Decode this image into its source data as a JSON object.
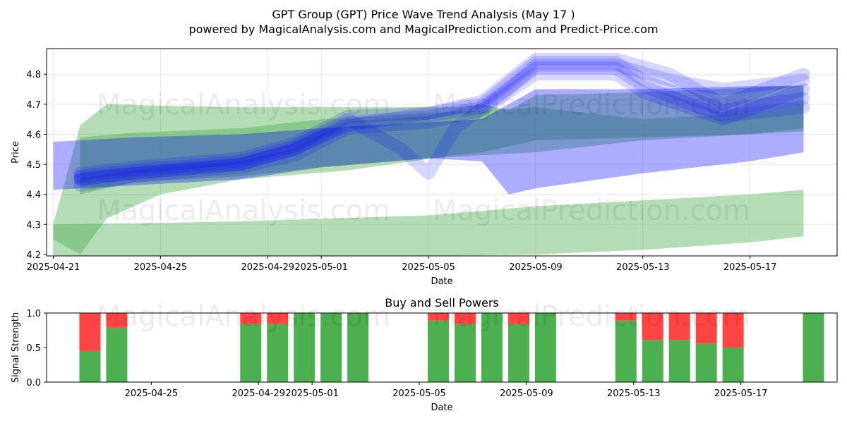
{
  "title_line1": "GPT Group (GPT) Price Wave Trend Analysis (May 17 )",
  "title_line2": "powered by MagicalAnalysis.com and MagicalPrediction.com and Predict-Price.com",
  "watermarks": [
    "MagicalAnalysis.com",
    "MagicalPrediction.com"
  ],
  "colors": {
    "bull_band": "#4caf50",
    "bear_band": "#0000ff",
    "buy": "#4caf50",
    "sell": "#ff4444"
  },
  "chart_data": [
    {
      "type": "area",
      "title": "",
      "xlabel": "Date",
      "ylabel": "Price",
      "xlim": [
        "2025-04-20T18:00",
        "2025-05-20T06:00"
      ],
      "ylim": [
        4.195,
        4.885
      ],
      "x_ticks": [
        "2025-04-21",
        "2025-04-25",
        "2025-04-29",
        "2025-05-01",
        "2025-05-05",
        "2025-05-09",
        "2025-05-13",
        "2025-05-17"
      ],
      "y_ticks": [
        4.2,
        4.3,
        4.4,
        4.5,
        4.6,
        4.7,
        4.8
      ],
      "grid": true,
      "series": [
        {
          "kind": "green-band-upper",
          "x": [
            "2025-04-21",
            "2025-04-22",
            "2025-04-23",
            "2025-04-25",
            "2025-04-28",
            "2025-05-02",
            "2025-05-06",
            "2025-05-07",
            "2025-05-08",
            "2025-05-09",
            "2025-05-13",
            "2025-05-17",
            "2025-05-19"
          ],
          "top": [
            4.3,
            4.63,
            4.7,
            4.695,
            4.69,
            4.69,
            4.69,
            4.7,
            4.68,
            4.73,
            4.74,
            4.755,
            4.765
          ],
          "bottom": [
            4.25,
            4.2,
            4.32,
            4.4,
            4.45,
            4.48,
            4.53,
            4.54,
            4.56,
            4.58,
            4.59,
            4.6,
            4.61
          ]
        },
        {
          "kind": "green-band-lower",
          "x": [
            "2025-04-21",
            "2025-04-25",
            "2025-04-28",
            "2025-05-05",
            "2025-05-09",
            "2025-05-13",
            "2025-05-17",
            "2025-05-19"
          ],
          "top": [
            4.3,
            4.305,
            4.31,
            4.33,
            4.36,
            4.38,
            4.4,
            4.415
          ],
          "bottom": [
            4.195,
            4.195,
            4.195,
            4.195,
            4.2,
            4.215,
            4.24,
            4.26
          ]
        },
        {
          "kind": "green-band-mid",
          "x": [
            "2025-04-22",
            "2025-04-24",
            "2025-04-28",
            "2025-05-01",
            "2025-05-05",
            "2025-05-09",
            "2025-05-13",
            "2025-05-17",
            "2025-05-19"
          ],
          "top": [
            4.59,
            4.605,
            4.62,
            4.65,
            4.67,
            4.69,
            4.65,
            4.67,
            4.7
          ],
          "bottom": [
            4.4,
            4.44,
            4.46,
            4.49,
            4.52,
            4.54,
            4.58,
            4.6,
            4.62
          ]
        },
        {
          "kind": "blue-band-wide",
          "x": [
            "2025-04-21",
            "2025-04-24",
            "2025-04-28",
            "2025-05-01",
            "2025-05-05",
            "2025-05-07",
            "2025-05-08",
            "2025-05-09",
            "2025-05-13",
            "2025-05-17",
            "2025-05-19"
          ],
          "top": [
            4.575,
            4.59,
            4.6,
            4.62,
            4.64,
            4.65,
            4.7,
            4.75,
            4.75,
            4.76,
            4.76
          ],
          "bottom": [
            4.415,
            4.43,
            4.45,
            4.49,
            4.52,
            4.51,
            4.4,
            4.42,
            4.47,
            4.51,
            4.54
          ]
        },
        {
          "kind": "blue-wave",
          "x": [
            "2025-04-22",
            "2025-04-24",
            "2025-04-28",
            "2025-04-30",
            "2025-05-02",
            "2025-05-05",
            "2025-05-07",
            "2025-05-09",
            "2025-05-12",
            "2025-05-13",
            "2025-05-16",
            "2025-05-19"
          ],
          "y": [
            4.45,
            4.47,
            4.5,
            4.55,
            4.64,
            4.66,
            4.69,
            4.82,
            4.82,
            4.76,
            4.66,
            4.69
          ]
        },
        {
          "kind": "blue-wave",
          "x": [
            "2025-04-22",
            "2025-04-24",
            "2025-04-28",
            "2025-04-30",
            "2025-05-02",
            "2025-05-05",
            "2025-05-07",
            "2025-05-09",
            "2025-05-12",
            "2025-05-13",
            "2025-05-16",
            "2025-05-19"
          ],
          "y": [
            4.47,
            4.49,
            4.52,
            4.57,
            4.66,
            4.67,
            4.7,
            4.84,
            4.84,
            4.78,
            4.68,
            4.72
          ]
        },
        {
          "kind": "blue-wave",
          "x": [
            "2025-04-22",
            "2025-04-24",
            "2025-04-28",
            "2025-04-30",
            "2025-05-02",
            "2025-05-05",
            "2025-05-07",
            "2025-05-09",
            "2025-05-12",
            "2025-05-13",
            "2025-05-16",
            "2025-05-19"
          ],
          "y": [
            4.43,
            4.46,
            4.49,
            4.53,
            4.62,
            4.64,
            4.68,
            4.8,
            4.8,
            4.74,
            4.65,
            4.75
          ]
        },
        {
          "kind": "blue-wave",
          "x": [
            "2025-04-22",
            "2025-04-24",
            "2025-04-28",
            "2025-04-30",
            "2025-05-02",
            "2025-05-04",
            "2025-05-05",
            "2025-05-06",
            "2025-05-08",
            "2025-05-09",
            "2025-05-12",
            "2025-05-14",
            "2025-05-16",
            "2025-05-19"
          ],
          "y": [
            4.46,
            4.48,
            4.51,
            4.56,
            4.65,
            4.55,
            4.47,
            4.62,
            4.75,
            4.83,
            4.83,
            4.78,
            4.75,
            4.78
          ]
        },
        {
          "kind": "blue-wave",
          "x": [
            "2025-04-22",
            "2025-04-24",
            "2025-04-28",
            "2025-04-30",
            "2025-05-02",
            "2025-05-05",
            "2025-05-07",
            "2025-05-09",
            "2025-05-12",
            "2025-05-14",
            "2025-05-16",
            "2025-05-19"
          ],
          "y": [
            4.45,
            4.47,
            4.5,
            4.55,
            4.63,
            4.67,
            4.71,
            4.85,
            4.85,
            4.8,
            4.7,
            4.8
          ]
        }
      ]
    },
    {
      "type": "bar",
      "title": "Buy and Sell Powers",
      "xlabel": "Date",
      "ylabel": "Signal Strength",
      "xlim": [
        "2025-04-20T18:00",
        "2025-05-20T06:00"
      ],
      "ylim": [
        0,
        1
      ],
      "x_ticks": [
        "2025-04-25",
        "2025-04-29",
        "2025-05-01",
        "2025-05-05",
        "2025-05-09",
        "2025-05-13",
        "2025-05-17"
      ],
      "y_ticks": [
        "0.0",
        "0.5",
        "1.0"
      ],
      "dates": [
        "2025-04-22",
        "2025-04-23",
        "2025-04-28",
        "2025-04-29",
        "2025-04-30",
        "2025-05-01",
        "2025-05-02",
        "2025-05-05",
        "2025-05-06",
        "2025-05-07",
        "2025-05-08",
        "2025-05-09",
        "2025-05-12",
        "2025-05-13",
        "2025-05-14",
        "2025-05-15",
        "2025-05-16",
        "2025-05-19"
      ],
      "buy": [
        0.45,
        0.79,
        0.84,
        0.84,
        1.0,
        1.0,
        1.0,
        0.89,
        0.84,
        1.0,
        0.84,
        1.0,
        0.89,
        0.61,
        0.61,
        0.56,
        0.5,
        1.0
      ],
      "sell": [
        0.55,
        0.21,
        0.16,
        0.16,
        0.0,
        0.0,
        0.0,
        0.11,
        0.16,
        0.0,
        0.16,
        0.0,
        0.11,
        0.39,
        0.39,
        0.44,
        0.5,
        0.0
      ]
    }
  ]
}
